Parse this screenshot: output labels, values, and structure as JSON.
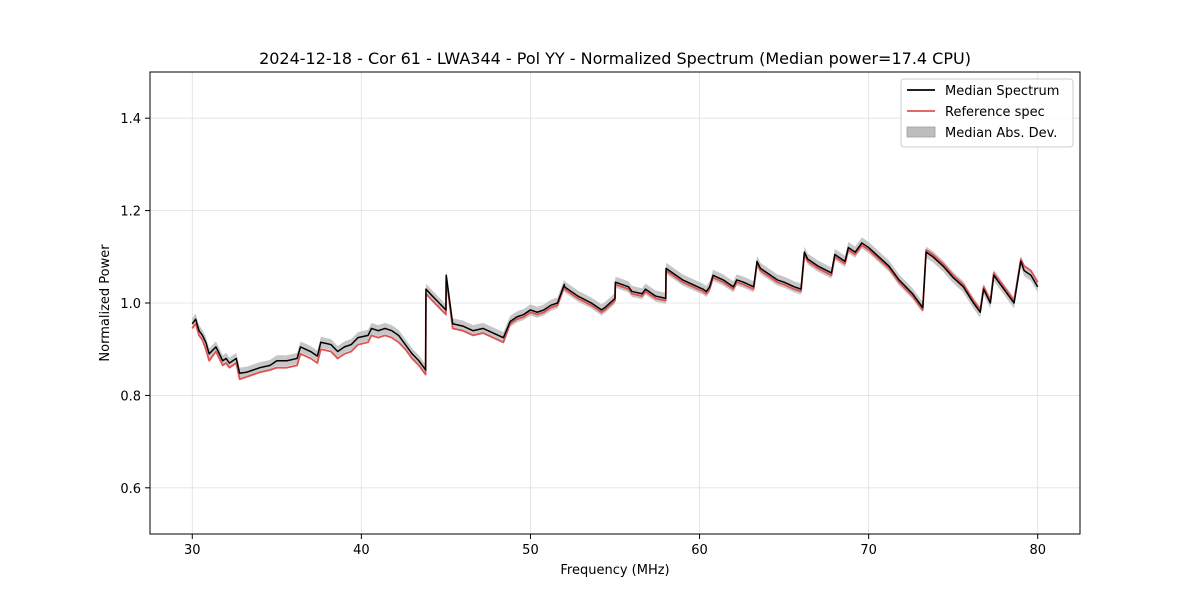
{
  "chart_data": {
    "type": "line",
    "title": "2024-12-18 - Cor 61 - LWA344 - Pol YY - Normalized Spectrum (Median power=17.4 CPU)",
    "xlabel": "Frequency (MHz)",
    "ylabel": "Normalized Power",
    "xlim": [
      27.5,
      82.5
    ],
    "ylim": [
      0.5,
      1.5
    ],
    "xticks": [
      30,
      40,
      50,
      60,
      70,
      80
    ],
    "xtick_labels": [
      "30",
      "40",
      "50",
      "60",
      "70",
      "80"
    ],
    "yticks": [
      0.6,
      0.8,
      1.0,
      1.2,
      1.4
    ],
    "ytick_labels": [
      "0.6",
      "0.8",
      "1.0",
      "1.2",
      "1.4"
    ],
    "grid": true,
    "legend_position": "top-right",
    "series": [
      {
        "name": "Median Spectrum",
        "color": "#000000",
        "x": [
          30.0,
          30.2,
          30.4,
          30.6,
          30.8,
          31.0,
          31.4,
          31.8,
          32.0,
          32.2,
          32.6,
          32.8,
          33.2,
          33.6,
          34.0,
          34.6,
          35.0,
          35.6,
          36.2,
          36.4,
          37.0,
          37.4,
          37.6,
          38.2,
          38.6,
          39.0,
          39.4,
          39.8,
          40.4,
          40.6,
          41.0,
          41.4,
          41.8,
          42.2,
          42.6,
          43.0,
          43.4,
          43.8,
          43.82,
          44.2,
          44.6,
          45.0,
          45.02,
          45.4,
          46.0,
          46.6,
          47.2,
          47.8,
          48.4,
          48.8,
          49.2,
          49.6,
          50.0,
          50.4,
          50.8,
          51.2,
          51.6,
          52.0,
          52.02,
          52.8,
          53.6,
          54.2,
          54.4,
          55.0,
          55.02,
          55.8,
          56.0,
          56.6,
          56.8,
          57.4,
          58.0,
          58.02,
          59.0,
          59.6,
          60.2,
          60.4,
          60.6,
          60.8,
          61.4,
          62.0,
          62.2,
          62.6,
          63.2,
          63.4,
          63.6,
          64.2,
          64.6,
          65.0,
          65.6,
          66.0,
          66.2,
          66.4,
          67.0,
          67.8,
          68.0,
          68.6,
          68.8,
          69.2,
          69.6,
          70.0,
          70.6,
          71.2,
          71.8,
          72.6,
          73.2,
          73.4,
          73.8,
          74.4,
          75.0,
          75.6,
          76.2,
          76.6,
          76.8,
          77.2,
          77.4,
          77.8,
          78.2,
          78.6,
          79.0,
          79.2,
          79.6,
          80.0
        ],
        "values": [
          0.955,
          0.965,
          0.94,
          0.93,
          0.915,
          0.89,
          0.905,
          0.875,
          0.88,
          0.87,
          0.88,
          0.848,
          0.85,
          0.855,
          0.86,
          0.865,
          0.875,
          0.875,
          0.88,
          0.905,
          0.895,
          0.885,
          0.915,
          0.91,
          0.895,
          0.905,
          0.91,
          0.925,
          0.93,
          0.945,
          0.94,
          0.945,
          0.94,
          0.93,
          0.91,
          0.89,
          0.875,
          0.855,
          1.03,
          1.015,
          1.0,
          0.985,
          1.06,
          0.955,
          0.95,
          0.94,
          0.945,
          0.935,
          0.925,
          0.96,
          0.97,
          0.975,
          0.985,
          0.98,
          0.985,
          0.995,
          1.0,
          1.04,
          1.035,
          1.015,
          1.0,
          0.985,
          0.99,
          1.01,
          1.045,
          1.035,
          1.025,
          1.02,
          1.03,
          1.015,
          1.01,
          1.075,
          1.05,
          1.04,
          1.03,
          1.025,
          1.035,
          1.06,
          1.05,
          1.035,
          1.05,
          1.045,
          1.035,
          1.09,
          1.075,
          1.06,
          1.05,
          1.045,
          1.035,
          1.03,
          1.11,
          1.095,
          1.08,
          1.065,
          1.105,
          1.09,
          1.12,
          1.11,
          1.13,
          1.12,
          1.1,
          1.08,
          1.05,
          1.02,
          0.99,
          1.11,
          1.1,
          1.08,
          1.055,
          1.035,
          1.0,
          0.98,
          1.03,
          1.0,
          1.06,
          1.04,
          1.02,
          1.0,
          1.09,
          1.07,
          1.06,
          1.035
        ]
      },
      {
        "name": "Reference spec",
        "color": "#e05252",
        "x": [
          30.0,
          30.2,
          30.4,
          30.6,
          30.8,
          31.0,
          31.4,
          31.8,
          32.0,
          32.2,
          32.6,
          32.8,
          33.2,
          33.6,
          34.0,
          34.6,
          35.0,
          35.6,
          36.2,
          36.4,
          37.0,
          37.4,
          37.6,
          38.2,
          38.6,
          39.0,
          39.4,
          39.8,
          40.4,
          40.6,
          41.0,
          41.4,
          41.8,
          42.2,
          42.6,
          43.0,
          43.4,
          43.8,
          43.82,
          44.2,
          44.6,
          45.0,
          45.02,
          45.4,
          46.0,
          46.6,
          47.2,
          47.8,
          48.4,
          48.8,
          49.2,
          49.6,
          50.0,
          50.4,
          50.8,
          51.2,
          51.6,
          52.0,
          52.02,
          52.8,
          53.6,
          54.2,
          54.4,
          55.0,
          55.02,
          55.8,
          56.0,
          56.6,
          56.8,
          57.4,
          58.0,
          58.02,
          59.0,
          59.6,
          60.2,
          60.4,
          60.6,
          60.8,
          61.4,
          62.0,
          62.2,
          62.6,
          63.2,
          63.4,
          63.6,
          64.2,
          64.6,
          65.0,
          65.6,
          66.0,
          66.2,
          66.4,
          67.0,
          67.8,
          68.0,
          68.6,
          68.8,
          69.2,
          69.6,
          70.0,
          70.6,
          71.2,
          71.8,
          72.6,
          73.2,
          73.4,
          73.8,
          74.4,
          75.0,
          75.6,
          76.2,
          76.6,
          76.8,
          77.2,
          77.4,
          77.8,
          78.2,
          78.6,
          79.0,
          79.2,
          79.6,
          80.0
        ],
        "values": [
          0.945,
          0.955,
          0.93,
          0.92,
          0.9,
          0.875,
          0.895,
          0.865,
          0.87,
          0.86,
          0.87,
          0.835,
          0.84,
          0.845,
          0.85,
          0.855,
          0.86,
          0.86,
          0.865,
          0.89,
          0.88,
          0.87,
          0.9,
          0.895,
          0.88,
          0.89,
          0.895,
          0.91,
          0.915,
          0.93,
          0.925,
          0.93,
          0.925,
          0.915,
          0.9,
          0.88,
          0.865,
          0.845,
          1.02,
          1.005,
          0.99,
          0.975,
          1.055,
          0.945,
          0.94,
          0.93,
          0.935,
          0.925,
          0.915,
          0.955,
          0.965,
          0.97,
          0.98,
          0.975,
          0.98,
          0.99,
          0.995,
          1.035,
          1.03,
          1.01,
          0.995,
          0.98,
          0.985,
          1.005,
          1.04,
          1.03,
          1.02,
          1.015,
          1.025,
          1.01,
          1.005,
          1.07,
          1.045,
          1.035,
          1.025,
          1.02,
          1.03,
          1.055,
          1.045,
          1.03,
          1.045,
          1.04,
          1.03,
          1.085,
          1.07,
          1.055,
          1.045,
          1.04,
          1.03,
          1.025,
          1.105,
          1.09,
          1.075,
          1.06,
          1.1,
          1.085,
          1.115,
          1.105,
          1.125,
          1.115,
          1.095,
          1.075,
          1.045,
          1.015,
          0.985,
          1.115,
          1.105,
          1.085,
          1.06,
          1.04,
          1.005,
          0.985,
          1.035,
          1.005,
          1.065,
          1.045,
          1.025,
          1.005,
          1.095,
          1.08,
          1.07,
          1.045
        ]
      }
    ],
    "band": {
      "name": "Median Abs. Dev.",
      "color": "#bdbdbd",
      "half_width": 0.012
    }
  }
}
